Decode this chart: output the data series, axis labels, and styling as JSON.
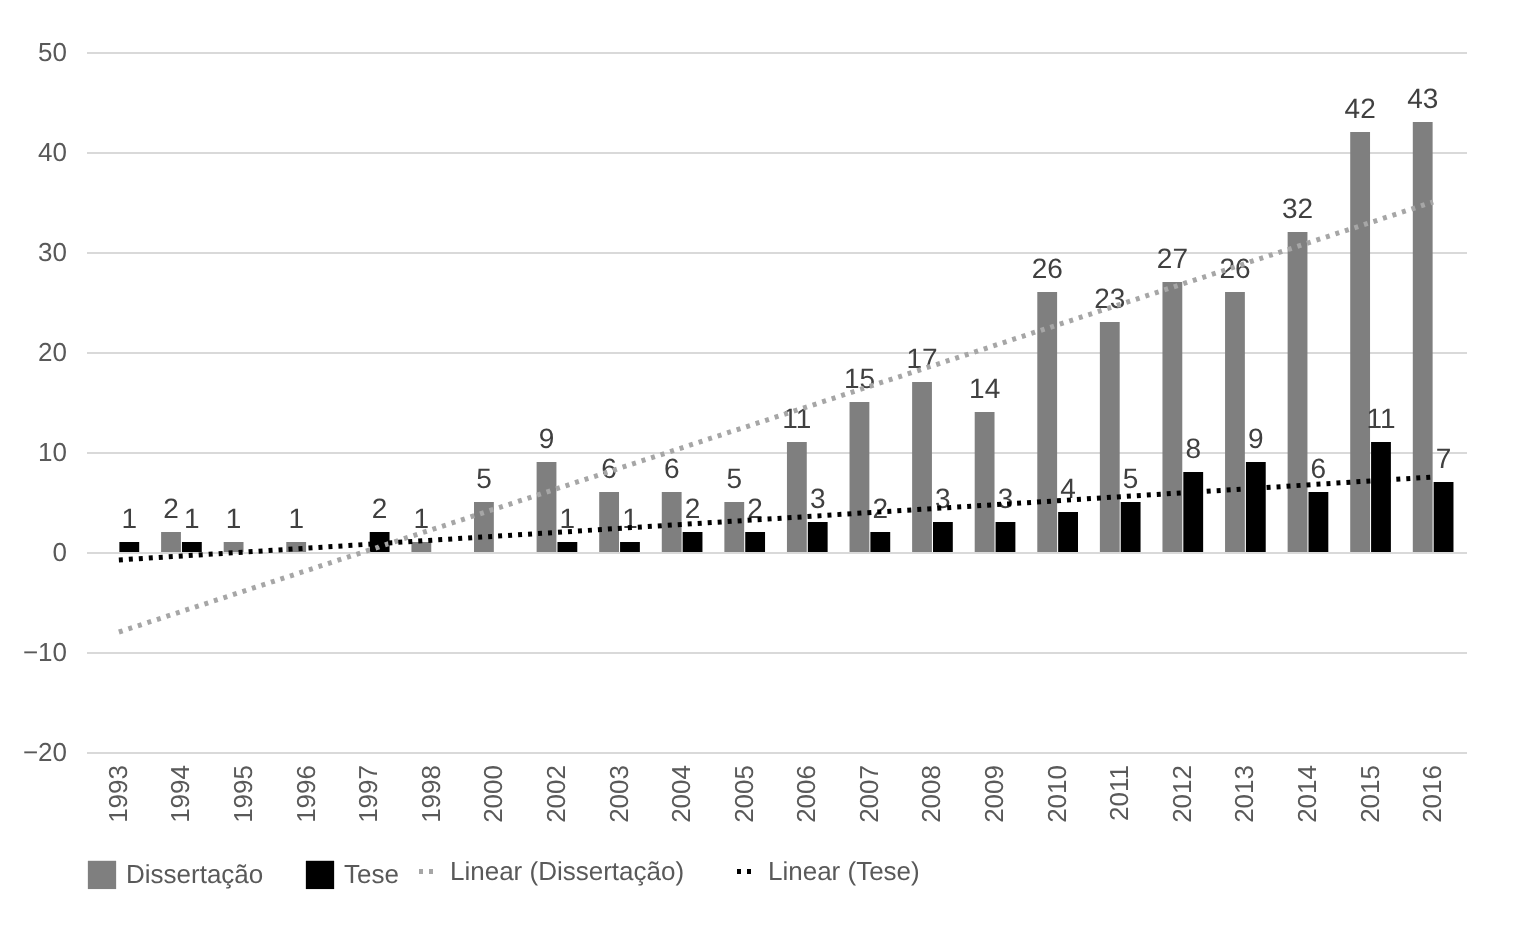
{
  "chart_data": {
    "type": "bar",
    "categories": [
      "1993",
      "1994",
      "1995",
      "1996",
      "1997",
      "1998",
      "2000",
      "2002",
      "2003",
      "2004",
      "2005",
      "2006",
      "2007",
      "2008",
      "2009",
      "2010",
      "2011",
      "2012",
      "2013",
      "2014",
      "2015",
      "2016"
    ],
    "series": [
      {
        "name": "Dissertação",
        "color": "#7f7f7f",
        "values": [
          null,
          2,
          1,
          1,
          null,
          1,
          5,
          9,
          6,
          6,
          5,
          11,
          15,
          17,
          14,
          26,
          23,
          27,
          26,
          32,
          42,
          43
        ],
        "value_labels": [
          null,
          "2",
          "1",
          "1",
          null,
          "1",
          "5",
          "9",
          "6",
          "6",
          "5",
          "11",
          "15",
          "17",
          "14",
          "26",
          "23",
          "27",
          "26",
          "32",
          "42",
          "43"
        ]
      },
      {
        "name": "Tese",
        "color": "#000000",
        "values": [
          1,
          1,
          null,
          null,
          2,
          null,
          null,
          1,
          1,
          2,
          2,
          3,
          2,
          3,
          3,
          4,
          5,
          8,
          9,
          6,
          11,
          7
        ],
        "value_labels": [
          "1",
          "1",
          null,
          null,
          "2",
          null,
          null,
          "1",
          "1",
          "2",
          "2",
          "3",
          "2",
          "3",
          "3",
          "4",
          "5",
          "8",
          "9",
          "6",
          "11",
          "7"
        ]
      },
      {
        "name": "Linear (Dissertação)",
        "type": "line",
        "color": "#a6a6a6",
        "line_style": "dotted",
        "values": [
          -8,
          null,
          null,
          null,
          null,
          null,
          null,
          null,
          null,
          null,
          null,
          null,
          null,
          null,
          null,
          null,
          null,
          null,
          null,
          null,
          null,
          35
        ]
      },
      {
        "name": "Linear (Tese)",
        "type": "line",
        "color": "#000000",
        "line_style": "dotted",
        "values": [
          -0.8,
          null,
          null,
          null,
          null,
          null,
          null,
          null,
          null,
          null,
          null,
          null,
          null,
          null,
          null,
          null,
          null,
          null,
          null,
          null,
          null,
          7.5
        ]
      }
    ],
    "ylim": [
      -20,
      50
    ],
    "yticks": [
      -20,
      -10,
      0,
      10,
      20,
      30,
      40,
      50
    ],
    "grid": "y",
    "legend": "bottom"
  }
}
